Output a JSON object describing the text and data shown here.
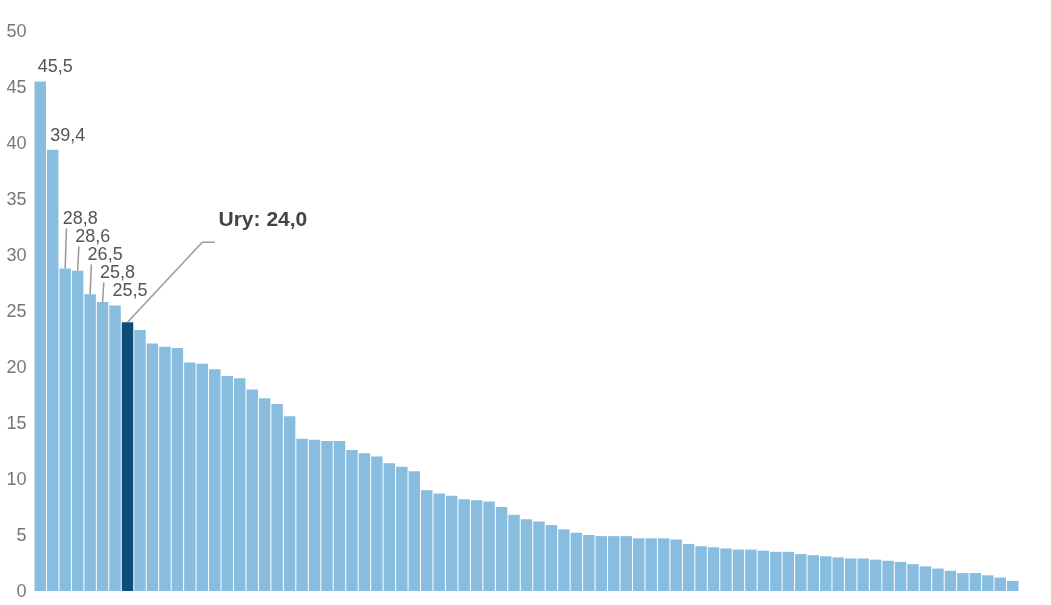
{
  "chart_data": {
    "type": "bar",
    "categories": [
      null,
      null,
      null,
      null,
      null,
      null,
      null,
      null,
      null,
      null,
      null,
      null,
      null,
      null,
      null,
      null,
      null,
      null,
      null,
      null,
      null,
      null,
      null,
      null,
      null,
      null,
      null,
      null,
      null,
      null,
      null,
      null,
      null,
      null,
      null,
      null,
      null,
      null,
      null,
      null,
      null,
      null,
      null,
      null,
      null,
      null,
      null,
      null,
      null,
      null,
      null,
      null,
      null,
      null,
      null,
      null,
      null,
      null,
      null,
      null,
      null,
      null,
      null,
      null,
      null,
      null,
      null,
      null,
      null,
      null,
      null,
      null,
      null,
      null,
      null,
      null,
      null,
      null,
      null
    ],
    "values": [
      45.5,
      39.4,
      28.8,
      28.6,
      26.5,
      25.8,
      25.5,
      24.0,
      23.3,
      22.1,
      21.8,
      21.7,
      20.4,
      20.3,
      19.8,
      19.2,
      19.0,
      18.0,
      17.2,
      16.7,
      15.6,
      13.6,
      13.5,
      13.4,
      13.4,
      12.6,
      12.3,
      12.0,
      11.4,
      11.1,
      10.7,
      9.0,
      8.7,
      8.5,
      8.2,
      8.1,
      8.0,
      7.5,
      6.8,
      6.4,
      6.2,
      5.9,
      5.5,
      5.2,
      5.0,
      4.9,
      4.9,
      4.9,
      4.7,
      4.7,
      4.7,
      4.6,
      4.2,
      4.0,
      3.9,
      3.8,
      3.7,
      3.7,
      3.6,
      3.5,
      3.5,
      3.3,
      3.2,
      3.1,
      3.0,
      2.9,
      2.9,
      2.8,
      2.7,
      2.6,
      2.4,
      2.2,
      2.0,
      1.8,
      1.6,
      1.6,
      1.4,
      1.2,
      0.9
    ],
    "colors": [
      "#88bde0",
      "#88bde0",
      "#88bde0",
      "#88bde0",
      "#88bde0",
      "#88bde0",
      "#88bde0",
      "#0e4d78",
      "#88bde0",
      "#88bde0",
      "#88bde0",
      "#88bde0",
      "#88bde0",
      "#88bde0",
      "#88bde0",
      "#88bde0",
      "#88bde0",
      "#88bde0",
      "#88bde0",
      "#88bde0",
      "#88bde0",
      "#88bde0",
      "#88bde0",
      "#88bde0",
      "#88bde0",
      "#88bde0",
      "#88bde0",
      "#88bde0",
      "#88bde0",
      "#88bde0",
      "#88bde0",
      "#88bde0",
      "#88bde0",
      "#88bde0",
      "#88bde0",
      "#88bde0",
      "#88bde0",
      "#88bde0",
      "#88bde0",
      "#88bde0",
      "#88bde0",
      "#88bde0",
      "#88bde0",
      "#88bde0",
      "#88bde0",
      "#88bde0",
      "#88bde0",
      "#88bde0",
      "#88bde0",
      "#88bde0",
      "#88bde0",
      "#88bde0",
      "#88bde0",
      "#88bde0",
      "#88bde0",
      "#88bde0",
      "#88bde0",
      "#88bde0",
      "#88bde0",
      "#88bde0",
      "#88bde0",
      "#88bde0",
      "#88bde0",
      "#88bde0",
      "#88bde0",
      "#88bde0",
      "#88bde0",
      "#88bde0",
      "#88bde0",
      "#88bde0",
      "#88bde0",
      "#88bde0",
      "#88bde0",
      "#88bde0",
      "#88bde0",
      "#88bde0",
      "#88bde0",
      "#88bde0",
      "#88bde0"
    ],
    "value_labels": [
      "45,5",
      "39,4",
      "28,8",
      "28,6",
      "26,5",
      "25,8",
      "25,5",
      "Ury: 24,0",
      null,
      null,
      null,
      null,
      null,
      null,
      null,
      null,
      null,
      null,
      null,
      null,
      null,
      null,
      null,
      null,
      null,
      null,
      null,
      null,
      null,
      null,
      null,
      null,
      null,
      null,
      null,
      null,
      null,
      null,
      null,
      null,
      null,
      null,
      null,
      null,
      null,
      null,
      null,
      null,
      null,
      null,
      null,
      null,
      null,
      null,
      null,
      null,
      null,
      null,
      null,
      null,
      null,
      null,
      null,
      null,
      null,
      null,
      null,
      null,
      null,
      null,
      null,
      null,
      null,
      null,
      null,
      null,
      null,
      null,
      null
    ],
    "ylim": [
      0,
      50
    ],
    "yticks": [
      0,
      5,
      10,
      15,
      20,
      25,
      30,
      35,
      40,
      45,
      50
    ]
  }
}
